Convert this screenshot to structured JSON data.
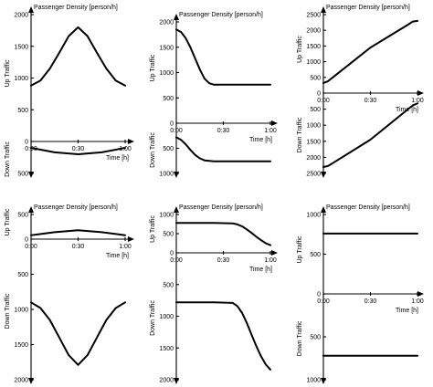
{
  "figure": {
    "y_title": "Passenger Density [person/h]",
    "up_label": "Up Traffic",
    "down_label": "Down Traffic",
    "time_label": "Time [h]"
  },
  "chart_data": [
    {
      "type": "line",
      "panel": "top-left",
      "x_ticks": [
        "0:00",
        "0:30",
        "1:00"
      ],
      "up": {
        "ylim": [
          0,
          2000
        ],
        "ticks": [
          500,
          1000,
          1500,
          2000
        ],
        "x": [
          0,
          0.1,
          0.2,
          0.3,
          0.4,
          0.5,
          0.6,
          0.7,
          0.8,
          0.9,
          1.0
        ],
        "y": [
          880,
          960,
          1150,
          1400,
          1660,
          1800,
          1660,
          1400,
          1150,
          960,
          880
        ]
      },
      "down": {
        "ylim": [
          0,
          500
        ],
        "ticks": [
          0,
          500
        ],
        "x": [
          0,
          0.25,
          0.5,
          0.75,
          1.0
        ],
        "y": [
          100,
          170,
          200,
          170,
          100
        ]
      }
    },
    {
      "type": "line",
      "panel": "top-middle",
      "x_ticks": [
        "0:00",
        "0:30",
        "1:00"
      ],
      "up": {
        "ylim": [
          0,
          2000
        ],
        "ticks": [
          0,
          500,
          1000,
          1500,
          2000
        ],
        "x": [
          0,
          0.05,
          0.1,
          0.15,
          0.2,
          0.25,
          0.3,
          0.35,
          0.4,
          0.5,
          0.7,
          1.0
        ],
        "y": [
          1850,
          1800,
          1680,
          1500,
          1280,
          1060,
          880,
          790,
          760,
          760,
          760,
          760
        ]
      },
      "down": {
        "ylim": [
          0,
          1000
        ],
        "ticks": [
          500,
          1000
        ],
        "x": [
          0,
          0.05,
          0.1,
          0.15,
          0.2,
          0.25,
          0.3,
          0.35,
          0.4,
          0.5,
          0.7,
          1.0
        ],
        "y": [
          280,
          330,
          420,
          530,
          630,
          700,
          740,
          750,
          760,
          760,
          760,
          760
        ]
      }
    },
    {
      "type": "line",
      "panel": "top-right",
      "x_ticks": [
        "0:00",
        "0:30",
        "1:00"
      ],
      "up": {
        "ylim": [
          0,
          2500
        ],
        "ticks": [
          0,
          500,
          1000,
          1500,
          2000,
          2500
        ],
        "x": [
          0,
          0.05,
          0.1,
          0.5,
          0.9,
          0.95,
          1.0
        ],
        "y": [
          320,
          380,
          500,
          1450,
          2180,
          2280,
          2300
        ]
      },
      "down": {
        "ylim": [
          0,
          2500
        ],
        "ticks": [
          500,
          1000,
          1500,
          2000,
          2500
        ],
        "x": [
          0,
          0.05,
          0.1,
          0.5,
          0.9,
          0.95,
          1.0
        ],
        "y": [
          2300,
          2270,
          2180,
          1450,
          500,
          380,
          320
        ]
      }
    },
    {
      "type": "line",
      "panel": "bottom-left",
      "x_ticks": [
        "0:00",
        "0:30",
        "1:00"
      ],
      "up": {
        "ylim": [
          0,
          500
        ],
        "ticks": [
          0,
          500
        ],
        "x": [
          0,
          0.25,
          0.5,
          0.75,
          1.0
        ],
        "y": [
          80,
          140,
          180,
          140,
          80
        ]
      },
      "down": {
        "ylim": [
          0,
          2000
        ],
        "ticks": [
          500,
          1000,
          1500,
          2000
        ],
        "x": [
          0,
          0.1,
          0.2,
          0.3,
          0.4,
          0.5,
          0.6,
          0.7,
          0.8,
          0.9,
          1.0
        ],
        "y": [
          900,
          980,
          1150,
          1400,
          1650,
          1790,
          1650,
          1400,
          1150,
          980,
          900
        ]
      }
    },
    {
      "type": "line",
      "panel": "bottom-middle",
      "x_ticks": [
        "0:00",
        "0:30",
        "1:00"
      ],
      "up": {
        "ylim": [
          0,
          1000
        ],
        "ticks": [
          0,
          500,
          1000
        ],
        "x": [
          0,
          0.2,
          0.4,
          0.6,
          0.65,
          0.7,
          0.75,
          0.8,
          0.85,
          0.9,
          0.95,
          1.0
        ],
        "y": [
          780,
          780,
          780,
          770,
          740,
          690,
          610,
          520,
          420,
          330,
          250,
          200
        ]
      },
      "down": {
        "ylim": [
          0,
          2000
        ],
        "ticks": [
          500,
          1000,
          1500,
          2000
        ],
        "x": [
          0,
          0.2,
          0.4,
          0.6,
          0.65,
          0.7,
          0.75,
          0.8,
          0.85,
          0.9,
          0.95,
          1.0
        ],
        "y": [
          780,
          780,
          780,
          790,
          840,
          950,
          1110,
          1290,
          1470,
          1630,
          1760,
          1840
        ]
      }
    },
    {
      "type": "line",
      "panel": "bottom-right",
      "x_ticks": [
        "0:00",
        "0:30",
        "1:00"
      ],
      "up": {
        "ylim": [
          0,
          1000
        ],
        "ticks": [
          0,
          500,
          1000
        ],
        "x": [
          0,
          0.25,
          0.5,
          0.75,
          1.0
        ],
        "y": [
          760,
          760,
          760,
          760,
          760
        ]
      },
      "down": {
        "ylim": [
          0,
          1000
        ],
        "ticks": [
          500,
          1000
        ],
        "x": [
          0,
          0.25,
          0.5,
          0.75,
          1.0
        ],
        "y": [
          720,
          720,
          720,
          720,
          720
        ]
      }
    }
  ]
}
